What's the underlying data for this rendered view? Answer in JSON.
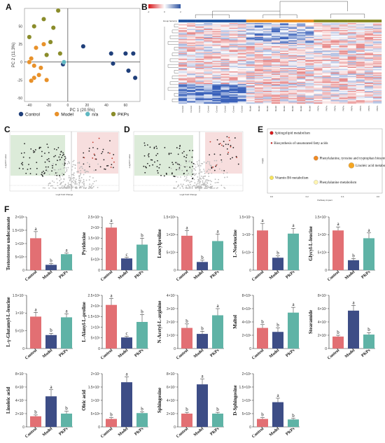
{
  "panel_letters": {
    "a": "A",
    "b": "B",
    "c": "C",
    "d": "D",
    "e": "E",
    "f": "F"
  },
  "chart_data": [
    {
      "id": "A",
      "type": "scatter",
      "xlabel": "PC 1 (20.5%)",
      "ylabel": "PC 2 (11.3%)",
      "xlim": [
        -45,
        75
      ],
      "ylim": [
        -55,
        75
      ],
      "xticks": [
        -40,
        -20,
        0,
        20,
        40,
        60
      ],
      "yticks": [
        -50,
        -25,
        0,
        25,
        50
      ],
      "legend_position": "bottom",
      "series": [
        {
          "name": "Control",
          "color": "#1f3f7a",
          "points": [
            [
              16,
              22
            ],
            [
              45,
              12
            ],
            [
              60,
              12
            ],
            [
              68,
              12
            ],
            [
              47,
              -2
            ],
            [
              63,
              -12
            ],
            [
              70,
              -22
            ],
            [
              -5,
              -3
            ]
          ]
        },
        {
          "name": "Model",
          "color": "#e8912a",
          "points": [
            [
              -33,
              20
            ],
            [
              -25,
              25
            ],
            [
              -38,
              5
            ],
            [
              -40,
              0
            ],
            [
              -35,
              -5
            ],
            [
              -28,
              -8
            ],
            [
              -30,
              -18
            ],
            [
              -35,
              -22
            ],
            [
              -38,
              -26
            ],
            [
              -22,
              -25
            ]
          ]
        },
        {
          "name": "n/a",
          "color": "#5fb8c2",
          "points": [
            [
              -4,
              0
            ]
          ]
        },
        {
          "name": "PKPs",
          "color": "#8a8c2a",
          "points": [
            [
              -25,
              60
            ],
            [
              -10,
              72
            ],
            [
              -35,
              50
            ],
            [
              -15,
              48
            ],
            [
              -40,
              35
            ],
            [
              -18,
              28
            ],
            [
              -8,
              12
            ],
            [
              -22,
              10
            ]
          ]
        }
      ]
    },
    {
      "id": "B",
      "type": "heatmap",
      "scale_ticks": [
        "-2",
        "0",
        "2"
      ],
      "group_bar_label": "Group factor(s)",
      "group_colors": [
        "#2357a3",
        "#e8912a",
        "#8a8c2a"
      ],
      "columns": [
        "Control",
        "Control",
        "Control",
        "Control",
        "Control",
        "Control",
        "Control",
        "Control",
        "Model",
        "Model",
        "Model",
        "Model",
        "Model",
        "Model",
        "Model",
        "Model",
        "PKPs",
        "PKPs",
        "PKPs",
        "PKPs",
        "PKPs",
        "PKPs",
        "PKPs",
        "PKPs"
      ],
      "rows": 70
    },
    {
      "id": "C",
      "type": "scatter",
      "xlabel": "Log2 Fold Change",
      "ylabel": "-Log10 P-value"
    },
    {
      "id": "D",
      "type": "scatter",
      "xlabel": "Log2 Fold Change",
      "ylabel": "-Log10 P-value"
    },
    {
      "id": "E",
      "type": "scatter",
      "xlabel": "Pathway Impact",
      "ylabel": "-log(p)",
      "xlim": [
        0,
        0.6
      ],
      "xticks": [
        "0.0",
        "0.2",
        "0.4",
        "0.6"
      ],
      "points": [
        {
          "label": "Sphingolipid metabolism",
          "x": 0.0,
          "y": 1.0,
          "color": "#d7191c"
        },
        {
          "label": "Biosynthesis of unsaturated fatty acids",
          "x": 0.0,
          "y": 0.82,
          "color": "#d7191c"
        },
        {
          "label": "Phenylalanine, tyrosine and tryptophan biosynthesis",
          "x": 0.25,
          "y": 0.55,
          "color": "#f08a24"
        },
        {
          "label": "Linoleic acid metabolism",
          "x": 0.45,
          "y": 0.42,
          "color": "#f5a623"
        },
        {
          "label": "Vitamin B6 metabolism",
          "x": 0.0,
          "y": 0.2,
          "color": "#f7e45c"
        },
        {
          "label": "Phenylalanine metabolism",
          "x": 0.25,
          "y": 0.12,
          "color": "#fff5b0"
        }
      ]
    },
    {
      "id": "F",
      "type": "bar",
      "categories": [
        "Control",
        "Model",
        "PKPs"
      ],
      "colors": [
        "#e26f73",
        "#3d4d86",
        "#5fb3a6"
      ],
      "panels": [
        {
          "title": "Testosterone undecanoate",
          "yticks": [
            "0",
            "5×10⁵",
            "1×10⁶",
            "1.5×10⁶",
            "2×10⁶"
          ],
          "ymax": 2.0,
          "values": [
            1.2,
            0.2,
            0.6
          ],
          "errors": [
            0.25,
            0.05,
            0.04
          ],
          "letters": [
            "a",
            "b",
            "a"
          ]
        },
        {
          "title": "Pyridoxine",
          "yticks": [
            "0",
            "5×10⁶",
            "1×10⁷",
            "1.5×10⁷",
            "2×10⁷",
            "2.5×10⁷"
          ],
          "ymax": 2.5,
          "values": [
            2.0,
            0.55,
            1.2
          ],
          "errors": [
            0.2,
            0.05,
            0.3
          ],
          "letters": [
            "a",
            "c",
            "b"
          ]
        },
        {
          "title": "Leucylproline",
          "yticks": [
            "0",
            "5×10⁵",
            "1×10⁶",
            "1.5×10⁶"
          ],
          "ymax": 1.5,
          "values": [
            0.97,
            0.23,
            0.82
          ],
          "errors": [
            0.15,
            0.05,
            0.2
          ],
          "letters": [
            "a",
            "b",
            "a"
          ]
        },
        {
          "title": "L-Norleucine",
          "yticks": [
            "0",
            "5×10⁶",
            "1×10⁷",
            "1.5×10⁷"
          ],
          "ymax": 1.5,
          "values": [
            1.12,
            0.35,
            1.03
          ],
          "errors": [
            0.2,
            0.05,
            0.15
          ],
          "letters": [
            "a",
            "b",
            "a"
          ]
        },
        {
          "title": "Glycyl-L-leucine",
          "yticks": [
            "0",
            "5×10⁶",
            "1×10⁷",
            "1.5×10⁷"
          ],
          "ymax": 1.5,
          "values": [
            1.12,
            0.28,
            0.9
          ],
          "errors": [
            0.1,
            0.05,
            0.15
          ],
          "letters": [
            "a",
            "b",
            "a"
          ]
        },
        {
          "title": "L-γ-Glutamyl-L-leucine",
          "yticks": [
            "0",
            "5×10⁶",
            "1×10⁷",
            "1.5×10⁷"
          ],
          "ymax": 1.5,
          "values": [
            0.9,
            0.38,
            0.88
          ],
          "errors": [
            0.12,
            0.05,
            0.1
          ],
          "letters": [
            "a",
            "b",
            "a"
          ]
        },
        {
          "title": "L-Alanyl-L-proline",
          "yticks": [
            "0",
            "5×10⁵",
            "1×10⁶",
            "1.5×10⁶",
            "2×10⁶",
            "2.5×10⁶"
          ],
          "ymax": 2.5,
          "values": [
            2.05,
            0.52,
            1.25
          ],
          "errors": [
            0.3,
            0.05,
            0.35
          ],
          "letters": [
            "a",
            "c",
            "b"
          ]
        },
        {
          "title": "N-Acetyl-L-arginine",
          "yticks": [
            "0",
            "1×10⁷",
            "2×10⁷",
            "3×10⁷",
            "4×10⁷"
          ],
          "ymax": 4.0,
          "values": [
            1.55,
            1.1,
            2.5
          ],
          "errors": [
            0.3,
            0.2,
            0.5
          ],
          "letters": [
            "b",
            "b",
            "a"
          ]
        },
        {
          "title": "Maltol",
          "yticks": [
            "0",
            "2×10⁶",
            "4×10⁶",
            "6×10⁶",
            "8×10⁶"
          ],
          "ymax": 8.0,
          "values": [
            3.1,
            2.5,
            5.4
          ],
          "errors": [
            0.5,
            0.6,
            0.8
          ],
          "letters": [
            "b",
            "b",
            "a"
          ]
        },
        {
          "title": "Stearamide",
          "yticks": [
            "0",
            "2×10⁷",
            "4×10⁷",
            "6×10⁷",
            "8×10⁷"
          ],
          "ymax": 8.0,
          "values": [
            1.8,
            5.7,
            2.1
          ],
          "errors": [
            0.2,
            0.8,
            0.3
          ],
          "letters": [
            "b",
            "a",
            "b"
          ]
        },
        {
          "title": "Linoleic acid",
          "yticks": [
            "0",
            "2×10⁷",
            "4×10⁷",
            "6×10⁷",
            "8×10⁷"
          ],
          "ymax": 8.0,
          "values": [
            1.6,
            4.6,
            2.0
          ],
          "errors": [
            0.2,
            1.0,
            0.35
          ],
          "letters": [
            "b",
            "a",
            "b"
          ]
        },
        {
          "title": "Oleic acid",
          "yticks": [
            "0",
            "5×10⁶",
            "1×10⁷",
            "1.5×10⁷",
            "2×10⁷"
          ],
          "ymax": 2.0,
          "values": [
            0.3,
            1.68,
            0.52
          ],
          "errors": [
            0.05,
            0.2,
            0.05
          ],
          "letters": [
            "b",
            "a",
            "b"
          ]
        },
        {
          "title": "Sphingosine",
          "yticks": [
            "0",
            "2×10⁷",
            "4×10⁷",
            "6×10⁷",
            "8×10⁷"
          ],
          "ymax": 8.0,
          "values": [
            2.0,
            6.4,
            2.0
          ],
          "errors": [
            0.2,
            0.8,
            0.2
          ],
          "letters": [
            "b",
            "a",
            "b"
          ]
        },
        {
          "title": "D-Sphingosine",
          "yticks": [
            "0",
            "5×10⁵",
            "1×10⁶",
            "1.5×10⁶",
            "2×10⁶"
          ],
          "ymax": 2.0,
          "values": [
            0.3,
            0.93,
            0.28
          ],
          "errors": [
            0.05,
            0.15,
            0.04
          ],
          "letters": [
            "b",
            "a",
            "b"
          ]
        }
      ]
    }
  ]
}
